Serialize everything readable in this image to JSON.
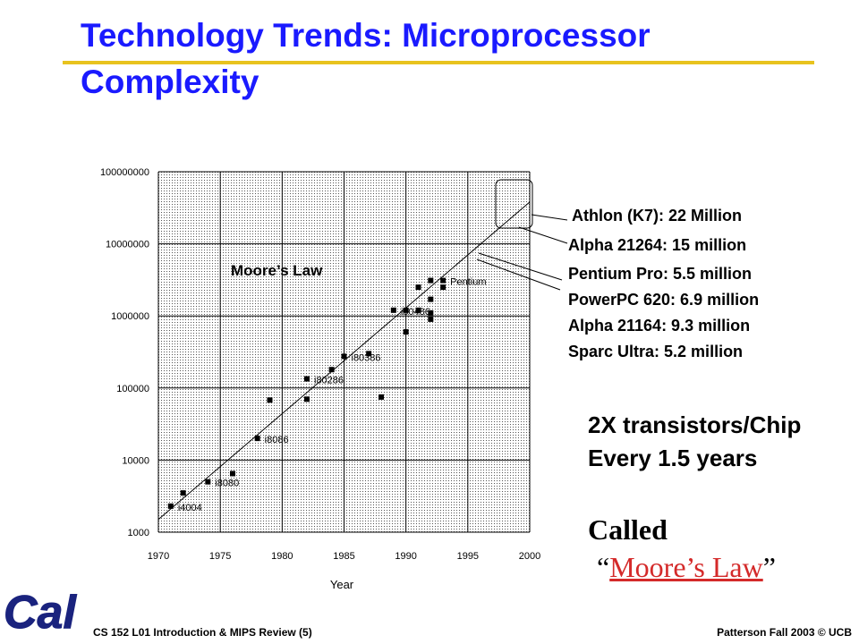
{
  "slide": {
    "title": "Technology Trends: Microprocessor Complexity",
    "accent_title": "#1a1aff",
    "accent_rule": "#e8c31e"
  },
  "callouts": [
    "Athlon (K7): 22 Million",
    "Alpha 21264: 15 million",
    "Pentium Pro: 5.5 million",
    "PowerPC 620: 6.9 million",
    "Alpha 21164: 9.3 million",
    "Sparc Ultra: 5.2 million"
  ],
  "trend_text": [
    "2X transistors/Chip",
    "Every 1.5 years"
  ],
  "called": {
    "prefix": "Called",
    "open_quote": "“",
    "link": "Moore’s Law",
    "close_quote": "”",
    "link_color": "#d42a2a"
  },
  "footer": {
    "left": "CS 152 L01 Introduction & MIPS Review (5)",
    "right": "Patterson Fall 2003 © UCB"
  },
  "logo": {
    "text": "Cal",
    "color": "#1a237e",
    "icon": "cal-logo-icon"
  },
  "chart_data": {
    "type": "scatter",
    "xlabel": "Year",
    "ylabel": "",
    "xlim": [
      1970,
      2000
    ],
    "ylim": [
      1000,
      100000000
    ],
    "y_scale": "log",
    "x_ticks": [
      1970,
      1975,
      1980,
      1985,
      1990,
      1995,
      2000
    ],
    "y_ticks": [
      1000,
      10000,
      100000,
      1000000,
      10000000,
      100000000
    ],
    "y_tick_labels": [
      "1000",
      "10000",
      "100000",
      "1000000",
      "10000000",
      "100000000"
    ],
    "annotation": "Moore’s Law",
    "grid": "dotted",
    "points": [
      {
        "x": 1971,
        "y": 2300
      },
      {
        "x": 1972,
        "y": 3500
      },
      {
        "x": 1974,
        "y": 5000
      },
      {
        "x": 1976,
        "y": 6500
      },
      {
        "x": 1978,
        "y": 20000
      },
      {
        "x": 1979,
        "y": 68000
      },
      {
        "x": 1982,
        "y": 134000
      },
      {
        "x": 1982,
        "y": 70000
      },
      {
        "x": 1984,
        "y": 180000
      },
      {
        "x": 1985,
        "y": 275000
      },
      {
        "x": 1987,
        "y": 300000
      },
      {
        "x": 1988,
        "y": 75000
      },
      {
        "x": 1989,
        "y": 1200000
      },
      {
        "x": 1990,
        "y": 1200000
      },
      {
        "x": 1990,
        "y": 600000
      },
      {
        "x": 1991,
        "y": 1200000
      },
      {
        "x": 1991,
        "y": 2500000
      },
      {
        "x": 1992,
        "y": 3100000
      },
      {
        "x": 1992,
        "y": 1700000
      },
      {
        "x": 1992,
        "y": 1100000
      },
      {
        "x": 1992,
        "y": 900000
      },
      {
        "x": 1993,
        "y": 3100000
      },
      {
        "x": 1993,
        "y": 2500000
      }
    ],
    "labels": [
      {
        "text": "i4004",
        "x": 1971,
        "y": 2300
      },
      {
        "text": "i8080",
        "x": 1974,
        "y": 5000
      },
      {
        "text": "i8086",
        "x": 1978,
        "y": 20000
      },
      {
        "text": "i80286",
        "x": 1982,
        "y": 134000
      },
      {
        "text": "i80386",
        "x": 1985,
        "y": 275000
      },
      {
        "text": "i80486",
        "x": 1989,
        "y": 1200000
      },
      {
        "text": "Pentium",
        "x": 1993,
        "y": 3100000
      }
    ],
    "trend_line": [
      {
        "x": 1970,
        "y": 1500
      },
      {
        "x": 2000,
        "y": 38000000
      }
    ]
  }
}
